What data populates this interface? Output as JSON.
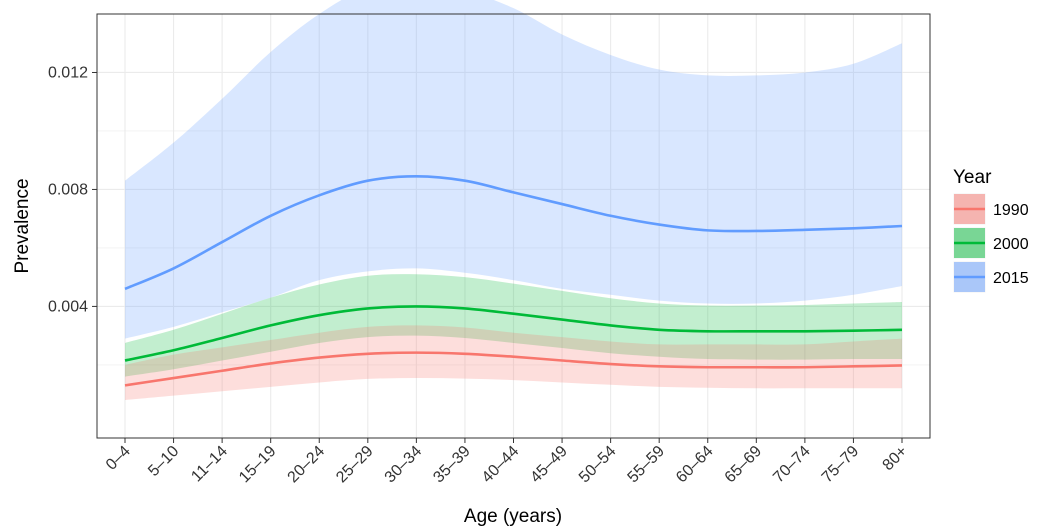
{
  "chart_data": {
    "type": "line",
    "xlabel": "Age (years)",
    "ylabel": "Prevalence",
    "categories": [
      "0–4",
      "5–10",
      "11–14",
      "15–19",
      "20–24",
      "25–29",
      "30–34",
      "35–39",
      "40–44",
      "45–49",
      "50–54",
      "55–59",
      "60–64",
      "65–69",
      "70–74",
      "75–79",
      "80+"
    ],
    "ylim": [
      -0.0005,
      0.014
    ],
    "yticks": [
      {
        "value": 0.004,
        "label": "0.004"
      },
      {
        "value": 0.008,
        "label": "0.008"
      },
      {
        "value": 0.012,
        "label": "0.012"
      }
    ],
    "grid": true,
    "legend": {
      "title": "Year",
      "position": "right"
    },
    "series": [
      {
        "name": "1990",
        "color": "#F8766D",
        "fill": "#F8766D",
        "values": [
          0.0013,
          0.00155,
          0.0018,
          0.00205,
          0.00225,
          0.00238,
          0.00242,
          0.00238,
          0.00228,
          0.00215,
          0.00203,
          0.00195,
          0.00192,
          0.00192,
          0.00192,
          0.00195,
          0.00198
        ],
        "lower": [
          0.0008,
          0.00095,
          0.0011,
          0.00125,
          0.0014,
          0.00152,
          0.00155,
          0.00153,
          0.00148,
          0.0014,
          0.00132,
          0.00125,
          0.00122,
          0.0012,
          0.0012,
          0.0012,
          0.0012
        ],
        "upper": [
          0.002,
          0.00235,
          0.0026,
          0.00285,
          0.0031,
          0.0033,
          0.00335,
          0.00328,
          0.0031,
          0.00295,
          0.0028,
          0.0027,
          0.0027,
          0.0027,
          0.0027,
          0.0028,
          0.0029
        ]
      },
      {
        "name": "2000",
        "color": "#00BA38",
        "fill": "#00BA38",
        "values": [
          0.00215,
          0.0025,
          0.00292,
          0.00335,
          0.0037,
          0.00393,
          0.004,
          0.00393,
          0.00375,
          0.00355,
          0.00335,
          0.0032,
          0.00315,
          0.00315,
          0.00315,
          0.00317,
          0.0032
        ],
        "lower": [
          0.0016,
          0.00185,
          0.00215,
          0.00245,
          0.00275,
          0.00295,
          0.003,
          0.00292,
          0.00275,
          0.00258,
          0.0024,
          0.00228,
          0.0022,
          0.00218,
          0.00218,
          0.0022,
          0.0022
        ],
        "upper": [
          0.00275,
          0.0032,
          0.00375,
          0.0043,
          0.00475,
          0.00505,
          0.0051,
          0.005,
          0.00478,
          0.00453,
          0.00428,
          0.0041,
          0.00403,
          0.00403,
          0.00405,
          0.0041,
          0.00415
        ]
      },
      {
        "name": "2015",
        "color": "#619CFF",
        "fill": "#619CFF",
        "values": [
          0.0046,
          0.0053,
          0.0062,
          0.0071,
          0.0078,
          0.0083,
          0.00845,
          0.0083,
          0.0079,
          0.0075,
          0.0071,
          0.0068,
          0.0066,
          0.00658,
          0.00662,
          0.00667,
          0.00675
        ],
        "lower": [
          0.0029,
          0.0033,
          0.0038,
          0.0043,
          0.0049,
          0.0052,
          0.0053,
          0.00515,
          0.0049,
          0.0046,
          0.0044,
          0.0042,
          0.0041,
          0.0041,
          0.0042,
          0.0044,
          0.0047
        ],
        "upper": [
          0.0083,
          0.0096,
          0.0111,
          0.0127,
          0.014,
          0.0149,
          0.0151,
          0.0148,
          0.0142,
          0.0133,
          0.0126,
          0.0121,
          0.0119,
          0.0119,
          0.012,
          0.0123,
          0.013
        ]
      }
    ]
  }
}
